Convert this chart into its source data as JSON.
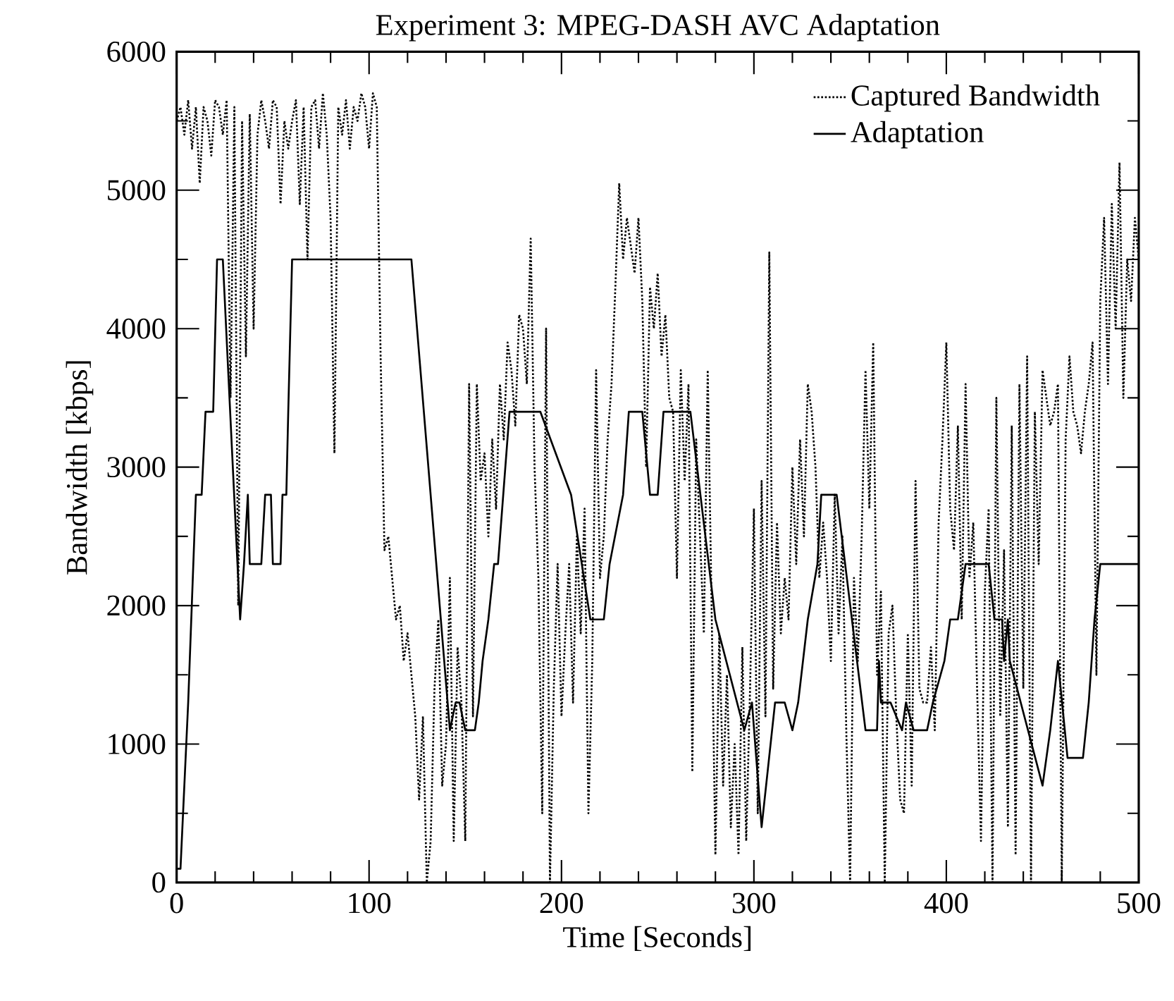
{
  "chart_data": {
    "type": "line",
    "title": "Experiment 3: MPEG-DASH AVC Adaptation",
    "xlabel": "Time [Seconds]",
    "ylabel": "Bandwidth [kbps]",
    "xlim": [
      0,
      500
    ],
    "ylim": [
      0,
      6000
    ],
    "xticks": [
      0,
      {
        "value": 20,
        "label": null
      },
      {
        "value": 40,
        "label": null
      },
      {
        "value": 60,
        "label": null
      },
      {
        "value": 80,
        "label": null
      },
      100,
      {
        "value": 120,
        "label": null
      },
      {
        "value": 140,
        "label": null
      },
      {
        "value": 160,
        "label": null
      },
      {
        "value": 180,
        "label": null
      },
      200,
      {
        "value": 220,
        "label": null
      },
      {
        "value": 240,
        "label": null
      },
      {
        "value": 260,
        "label": null
      },
      {
        "value": 280,
        "label": null
      },
      300,
      {
        "value": 320,
        "label": null
      },
      {
        "value": 340,
        "label": null
      },
      {
        "value": 360,
        "label": null
      },
      {
        "value": 380,
        "label": null
      },
      400,
      {
        "value": 420,
        "label": null
      },
      {
        "value": 440,
        "label": null
      },
      {
        "value": 460,
        "label": null
      },
      {
        "value": 480,
        "label": null
      },
      500
    ],
    "yticks": [
      0,
      {
        "value": 500,
        "label": null
      },
      1000,
      {
        "value": 1500,
        "label": null
      },
      2000,
      {
        "value": 2500,
        "label": null
      },
      3000,
      {
        "value": 3500,
        "label": null
      },
      4000,
      {
        "value": 4500,
        "label": null
      },
      5000,
      {
        "value": 5500,
        "label": null
      },
      6000
    ],
    "legend": "top right",
    "marker": "none",
    "grid": false,
    "series": [
      {
        "name": "Captured Bandwidth",
        "color": "#000000",
        "line_style": "dotted",
        "x": [
          0,
          2,
          4,
          6,
          8,
          10,
          12,
          14,
          16,
          18,
          20,
          22,
          24,
          26,
          28,
          30,
          32,
          34,
          36,
          38,
          40,
          42,
          44,
          46,
          48,
          50,
          52,
          54,
          56,
          58,
          60,
          62,
          64,
          66,
          68,
          70,
          72,
          74,
          76,
          78,
          80,
          82,
          84,
          86,
          88,
          90,
          92,
          94,
          96,
          98,
          100,
          102,
          104,
          106,
          108,
          110,
          112,
          114,
          116,
          118,
          120,
          122,
          124,
          126,
          128,
          130,
          132,
          134,
          136,
          138,
          140,
          142,
          144,
          146,
          148,
          150,
          152,
          154,
          156,
          158,
          160,
          162,
          164,
          166,
          168,
          170,
          172,
          174,
          176,
          178,
          180,
          182,
          184,
          186,
          188,
          190,
          192,
          194,
          196,
          198,
          200,
          202,
          204,
          206,
          208,
          210,
          212,
          214,
          216,
          218,
          220,
          222,
          224,
          226,
          228,
          230,
          232,
          234,
          236,
          238,
          240,
          242,
          244,
          246,
          248,
          250,
          252,
          254,
          256,
          258,
          260,
          262,
          264,
          266,
          268,
          270,
          272,
          274,
          276,
          278,
          280,
          282,
          284,
          286,
          288,
          290,
          292,
          294,
          296,
          298,
          300,
          302,
          304,
          306,
          308,
          310,
          312,
          314,
          316,
          318,
          320,
          322,
          324,
          326,
          328,
          330,
          332,
          334,
          336,
          338,
          340,
          342,
          344,
          346,
          348,
          350,
          352,
          354,
          356,
          358,
          360,
          362,
          364,
          366,
          368,
          370,
          372,
          374,
          376,
          378,
          380,
          382,
          384,
          386,
          388,
          390,
          392,
          394,
          396,
          398,
          400,
          402,
          404,
          406,
          408,
          410,
          412,
          414,
          416,
          418,
          420,
          422,
          424,
          426,
          428,
          430,
          432,
          434,
          436,
          438,
          440,
          442,
          444,
          446,
          448,
          450,
          452,
          454,
          456,
          458,
          460,
          462,
          464,
          466,
          468,
          470,
          472,
          474,
          476,
          478,
          480,
          482,
          484,
          486,
          488,
          490,
          492,
          494,
          496,
          498,
          500
        ],
        "values": [
          5500,
          5600,
          5400,
          5650,
          5300,
          5600,
          5050,
          5600,
          5500,
          5250,
          5650,
          5600,
          5400,
          5650,
          3500,
          5600,
          2000,
          5500,
          3800,
          5550,
          4000,
          5400,
          5650,
          5500,
          5300,
          5650,
          5600,
          4900,
          5500,
          5300,
          5500,
          5650,
          4900,
          5600,
          4500,
          5600,
          5650,
          5300,
          5700,
          5400,
          4800,
          3100,
          5600,
          5400,
          5650,
          5300,
          5600,
          5500,
          5700,
          5600,
          5300,
          5700,
          5600,
          3800,
          2400,
          2500,
          2200,
          1900,
          2000,
          1600,
          1800,
          1500,
          1200,
          600,
          1200,
          0,
          300,
          1400,
          1900,
          700,
          1000,
          2200,
          300,
          1700,
          1300,
          300,
          3600,
          1200,
          3600,
          2900,
          3100,
          2500,
          3200,
          2700,
          3600,
          3200,
          3900,
          3700,
          3300,
          4100,
          4000,
          3600,
          4650,
          3000,
          2200,
          500,
          4000,
          0,
          1400,
          2300,
          1200,
          1800,
          2300,
          1300,
          2500,
          1800,
          2700,
          500,
          1600,
          3700,
          2200,
          2500,
          3200,
          3600,
          4300,
          5050,
          4500,
          4800,
          4600,
          4400,
          4800,
          4200,
          3000,
          4300,
          4000,
          4400,
          3800,
          4100,
          3500,
          3400,
          2200,
          3700,
          2900,
          3600,
          800,
          3200,
          2500,
          1800,
          3700,
          2000,
          200,
          1800,
          700,
          1500,
          400,
          1000,
          200,
          1700,
          300,
          1400,
          2700,
          500,
          2900,
          1200,
          4550,
          1400,
          2600,
          1800,
          2200,
          1900,
          3000,
          2300,
          3200,
          2500,
          3600,
          3400,
          3000,
          2200,
          2600,
          2200,
          1600,
          2800,
          1800,
          2500,
          1100,
          0,
          2200,
          1600,
          2500,
          3700,
          2700,
          3900,
          1500,
          2100,
          0,
          1800,
          2000,
          1200,
          600,
          500,
          1800,
          700,
          2900,
          1400,
          1300,
          1300,
          1700,
          1100,
          2600,
          3200,
          3900,
          2700,
          2400,
          3300,
          1900,
          3600,
          2200,
          2600,
          1400,
          300,
          2100,
          2700,
          0,
          3500,
          1200,
          2400,
          400,
          3300,
          200,
          3600,
          1400,
          3800,
          0,
          3400,
          2300,
          3700,
          3500,
          3300,
          3400,
          3600,
          0,
          3200,
          3800,
          3400,
          3300,
          3100,
          3400,
          3600,
          3900,
          1500,
          4200,
          4800,
          3600,
          4900,
          4000,
          5200,
          3500,
          4500,
          4200,
          4800,
          4500
        ]
      },
      {
        "name": "Adaptation",
        "color": "#000000",
        "line_style": "solid",
        "x": [
          0,
          2,
          6,
          10,
          13,
          15,
          19,
          21,
          24,
          33,
          35,
          37,
          38,
          44,
          46,
          49,
          50,
          54,
          55,
          57,
          58,
          60,
          122,
          142,
          145,
          147,
          150,
          155,
          157,
          159,
          162,
          165,
          167,
          173,
          189,
          205,
          215,
          222,
          225,
          232,
          235,
          242,
          246,
          250,
          253,
          267,
          280,
          295,
          299,
          304,
          311,
          316,
          320,
          323,
          328,
          333,
          335,
          343,
          358,
          364,
          365,
          366,
          371,
          377,
          379,
          383,
          390,
          393,
          399,
          402,
          406,
          410,
          422,
          425,
          429,
          430,
          432,
          433,
          450,
          454,
          458,
          463,
          471,
          474,
          477,
          480,
          500
        ],
        "values": [
          100,
          100,
          1300,
          2800,
          2800,
          3400,
          3400,
          4500,
          4500,
          1900,
          2300,
          2800,
          2300,
          2300,
          2800,
          2800,
          2300,
          2300,
          2800,
          2800,
          3400,
          4500,
          4500,
          1100,
          1300,
          1300,
          1100,
          1100,
          1300,
          1600,
          1900,
          2300,
          2300,
          3400,
          3400,
          2800,
          1900,
          1900,
          2300,
          2800,
          3400,
          3400,
          2800,
          2800,
          3400,
          3400,
          1900,
          1100,
          1300,
          400,
          1300,
          1300,
          1100,
          1300,
          1900,
          2300,
          2800,
          2800,
          1100,
          1100,
          1600,
          1300,
          1300,
          1100,
          1300,
          1100,
          1100,
          1300,
          1600,
          1900,
          1900,
          2300,
          2300,
          1900,
          1900,
          1600,
          1900,
          1600,
          700,
          1100,
          1600,
          900,
          900,
          1300,
          1900,
          2300,
          2300
        ]
      }
    ]
  }
}
